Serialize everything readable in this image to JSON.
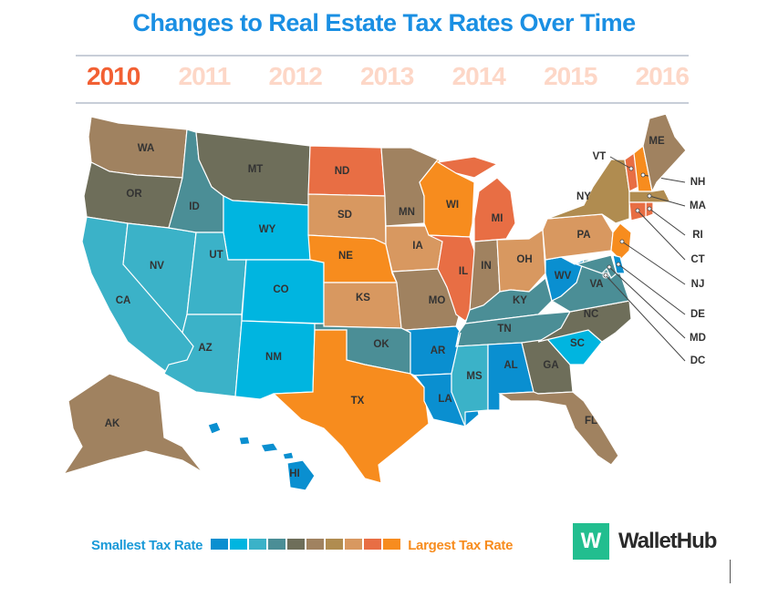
{
  "title": "Changes to Real Estate Tax Rates Over Time",
  "years": [
    "2010",
    "2011",
    "2012",
    "2013",
    "2014",
    "2015",
    "2016"
  ],
  "active_year": "2010",
  "legend": {
    "small_label": "Smallest Tax Rate",
    "large_label": "Largest Tax Rate",
    "colors": [
      "#0a8fd0",
      "#00b5e0",
      "#3bb2c8",
      "#4b8e96",
      "#6e6e5a",
      "#a08260",
      "#b08c50",
      "#d89860",
      "#e86e44",
      "#f78c1e"
    ]
  },
  "brand": {
    "logo_letter": "W",
    "name": "WalletHub",
    "color": "#22be8f"
  },
  "states": [
    {
      "code": "WA",
      "tier": 5
    },
    {
      "code": "OR",
      "tier": 4
    },
    {
      "code": "CA",
      "tier": 2
    },
    {
      "code": "NV",
      "tier": 2
    },
    {
      "code": "ID",
      "tier": 3
    },
    {
      "code": "MT",
      "tier": 4
    },
    {
      "code": "WY",
      "tier": 1
    },
    {
      "code": "UT",
      "tier": 2
    },
    {
      "code": "CO",
      "tier": 1
    },
    {
      "code": "AZ",
      "tier": 2
    },
    {
      "code": "NM",
      "tier": 1
    },
    {
      "code": "ND",
      "tier": 8
    },
    {
      "code": "SD",
      "tier": 7
    },
    {
      "code": "NE",
      "tier": 9
    },
    {
      "code": "KS",
      "tier": 7
    },
    {
      "code": "OK",
      "tier": 3
    },
    {
      "code": "TX",
      "tier": 9
    },
    {
      "code": "MN",
      "tier": 5
    },
    {
      "code": "IA",
      "tier": 7
    },
    {
      "code": "MO",
      "tier": 5
    },
    {
      "code": "AR",
      "tier": 0
    },
    {
      "code": "LA",
      "tier": 0
    },
    {
      "code": "WI",
      "tier": 9
    },
    {
      "code": "IL",
      "tier": 8
    },
    {
      "code": "MI",
      "tier": 8
    },
    {
      "code": "IN",
      "tier": 5
    },
    {
      "code": "OH",
      "tier": 7
    },
    {
      "code": "KY",
      "tier": 3
    },
    {
      "code": "TN",
      "tier": 3
    },
    {
      "code": "MS",
      "tier": 2
    },
    {
      "code": "AL",
      "tier": 0
    },
    {
      "code": "GA",
      "tier": 4
    },
    {
      "code": "FL",
      "tier": 5
    },
    {
      "code": "SC",
      "tier": 1
    },
    {
      "code": "NC",
      "tier": 4
    },
    {
      "code": "VA",
      "tier": 3
    },
    {
      "code": "WV",
      "tier": 0
    },
    {
      "code": "PA",
      "tier": 7
    },
    {
      "code": "NY",
      "tier": 6
    },
    {
      "code": "VT",
      "tier": 8
    },
    {
      "code": "NH",
      "tier": 9
    },
    {
      "code": "ME",
      "tier": 5
    },
    {
      "code": "MA",
      "tier": 6
    },
    {
      "code": "RI",
      "tier": 8
    },
    {
      "code": "CT",
      "tier": 8
    },
    {
      "code": "NJ",
      "tier": 9
    },
    {
      "code": "DE",
      "tier": 0
    },
    {
      "code": "MD",
      "tier": 3
    },
    {
      "code": "DC",
      "tier": 3
    },
    {
      "code": "AK",
      "tier": 5
    },
    {
      "code": "HI",
      "tier": 0
    }
  ]
}
